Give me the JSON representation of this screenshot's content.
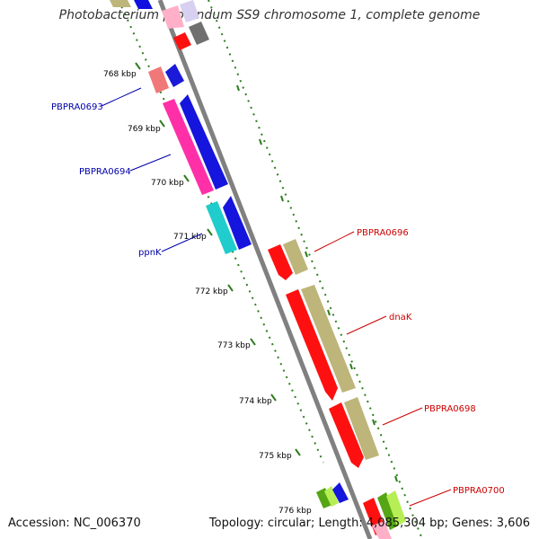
{
  "title": "Photobacterium profundum SS9 chromosome 1, complete genome",
  "accession": "Accession: NC_006370",
  "topology": "Topology: circular; Length: 4,085,304 bp; Genes: 3,606",
  "colors": {
    "backbone": "#808080",
    "tick": "#2e7d1e",
    "forward_label": "#cc0000",
    "reverse_label": "#0000aa"
  },
  "ticks": [
    {
      "label": "768 kbp"
    },
    {
      "label": "769 kbp"
    },
    {
      "label": "770 kbp"
    },
    {
      "label": "771 kbp"
    },
    {
      "label": "772 kbp"
    },
    {
      "label": "773 kbp"
    },
    {
      "label": "774 kbp"
    },
    {
      "label": "775 kbp"
    },
    {
      "label": "776 kbp"
    }
  ],
  "gene_labels": [
    {
      "name": "PBPRA0693",
      "strand": "reverse"
    },
    {
      "name": "PBPRA0694",
      "strand": "reverse"
    },
    {
      "name": "ppnK",
      "strand": "reverse"
    },
    {
      "name": "PBPRA0696",
      "strand": "forward"
    },
    {
      "name": "dnaK",
      "strand": "forward"
    },
    {
      "name": "PBPRA0698",
      "strand": "forward"
    },
    {
      "name": "PBPRA0700",
      "strand": "forward"
    }
  ]
}
